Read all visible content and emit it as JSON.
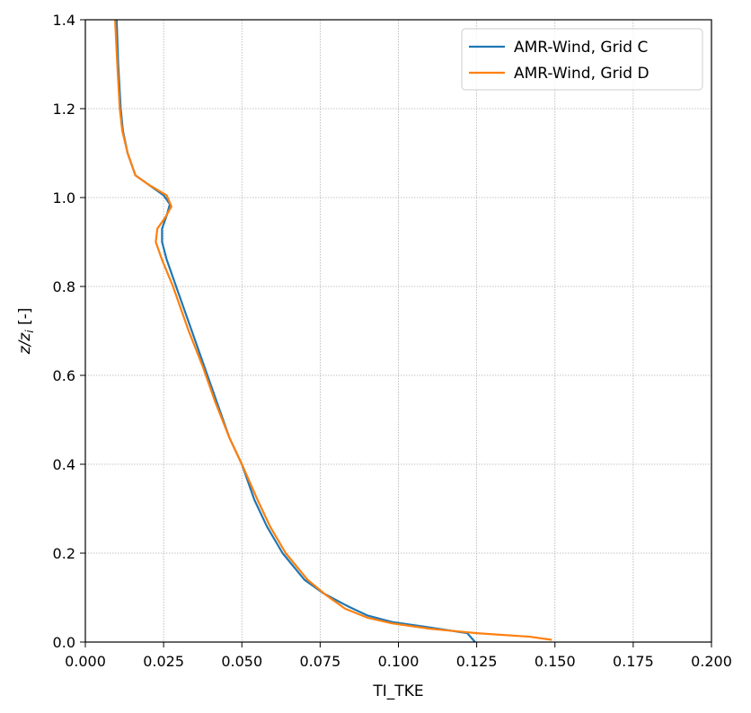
{
  "chart_data": {
    "type": "line",
    "title": "",
    "xlabel": "TI_TKE",
    "ylabel": {
      "base": "z/z",
      "subscript": "i",
      "suffix": " [-]"
    },
    "xlim": [
      0.0,
      0.2
    ],
    "ylim": [
      0.0,
      1.4
    ],
    "xticks": [
      "0.000",
      "0.025",
      "0.050",
      "0.075",
      "0.100",
      "0.125",
      "0.150",
      "0.175",
      "0.200"
    ],
    "yticks": [
      "0.0",
      "0.2",
      "0.4",
      "0.6",
      "0.8",
      "1.0",
      "1.2",
      "1.4"
    ],
    "grid": true,
    "legend_position": "upper right",
    "series": [
      {
        "name": "AMR-Wind, Grid C",
        "color": "#1f77b4",
        "points": [
          [
            0.1245,
            0.0
          ],
          [
            0.122,
            0.02
          ],
          [
            0.108,
            0.035
          ],
          [
            0.098,
            0.045
          ],
          [
            0.09,
            0.06
          ],
          [
            0.084,
            0.08
          ],
          [
            0.076,
            0.11
          ],
          [
            0.07,
            0.14
          ],
          [
            0.063,
            0.2
          ],
          [
            0.058,
            0.26
          ],
          [
            0.054,
            0.32
          ],
          [
            0.05,
            0.4
          ],
          [
            0.046,
            0.46
          ],
          [
            0.042,
            0.54
          ],
          [
            0.038,
            0.62
          ],
          [
            0.034,
            0.7
          ],
          [
            0.029,
            0.8
          ],
          [
            0.026,
            0.86
          ],
          [
            0.0245,
            0.9
          ],
          [
            0.0245,
            0.93
          ],
          [
            0.026,
            0.96
          ],
          [
            0.027,
            0.985
          ],
          [
            0.025,
            1.005
          ],
          [
            0.02,
            1.03
          ],
          [
            0.016,
            1.05
          ],
          [
            0.0135,
            1.1
          ],
          [
            0.012,
            1.15
          ],
          [
            0.0113,
            1.2
          ],
          [
            0.0105,
            1.3
          ],
          [
            0.01,
            1.4
          ]
        ]
      },
      {
        "name": "AMR-Wind, Grid D",
        "color": "#ff7f0e",
        "points": [
          [
            0.149,
            0.005
          ],
          [
            0.142,
            0.012
          ],
          [
            0.125,
            0.02
          ],
          [
            0.11,
            0.03
          ],
          [
            0.098,
            0.042
          ],
          [
            0.09,
            0.055
          ],
          [
            0.083,
            0.075
          ],
          [
            0.077,
            0.105
          ],
          [
            0.071,
            0.14
          ],
          [
            0.064,
            0.2
          ],
          [
            0.059,
            0.26
          ],
          [
            0.055,
            0.32
          ],
          [
            0.05,
            0.4
          ],
          [
            0.046,
            0.46
          ],
          [
            0.0415,
            0.54
          ],
          [
            0.0375,
            0.62
          ],
          [
            0.033,
            0.7
          ],
          [
            0.028,
            0.8
          ],
          [
            0.0245,
            0.86
          ],
          [
            0.0225,
            0.9
          ],
          [
            0.023,
            0.93
          ],
          [
            0.0255,
            0.955
          ],
          [
            0.0275,
            0.98
          ],
          [
            0.026,
            1.005
          ],
          [
            0.02,
            1.03
          ],
          [
            0.016,
            1.05
          ],
          [
            0.0135,
            1.1
          ],
          [
            0.0118,
            1.15
          ],
          [
            0.011,
            1.2
          ],
          [
            0.0102,
            1.3
          ],
          [
            0.0095,
            1.4
          ]
        ]
      }
    ]
  }
}
